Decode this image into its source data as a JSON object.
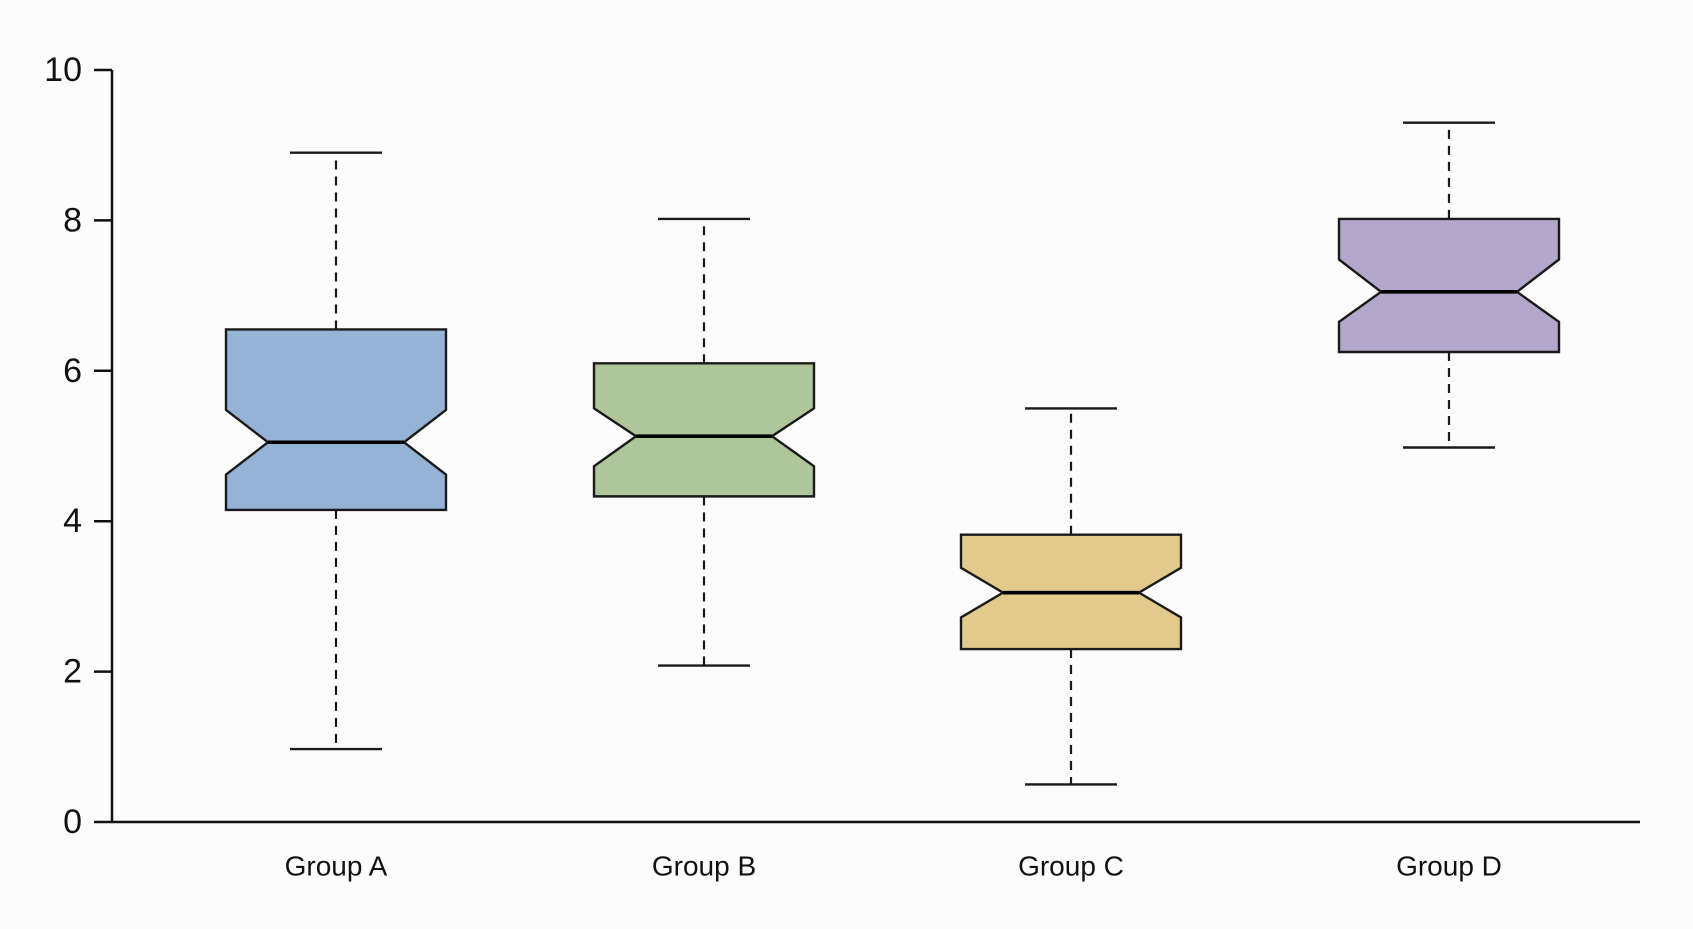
{
  "chart_data": {
    "type": "box",
    "notched": true,
    "title": "",
    "xlabel": "",
    "ylabel": "",
    "ylim": [
      0,
      10
    ],
    "yticks": [
      0,
      2,
      4,
      6,
      8,
      10
    ],
    "grid": false,
    "legend": "none",
    "categories": [
      "Group A",
      "Group B",
      "Group C",
      "Group D"
    ],
    "boxes": [
      {
        "category": "Group A",
        "whisker_low": 0.97,
        "q1": 4.15,
        "median": 5.05,
        "q3": 6.55,
        "whisker_high": 8.9,
        "notch_low": 4.62,
        "notch_high": 5.48,
        "color": "#94b3d5"
      },
      {
        "category": "Group B",
        "whisker_low": 2.08,
        "q1": 4.33,
        "median": 5.13,
        "q3": 6.1,
        "whisker_high": 8.02,
        "notch_low": 4.73,
        "notch_high": 5.5,
        "color": "#afc59a"
      },
      {
        "category": "Group C",
        "whisker_low": 0.5,
        "q1": 2.3,
        "median": 3.05,
        "q3": 3.82,
        "whisker_high": 5.5,
        "notch_low": 2.72,
        "notch_high": 3.38,
        "color": "#e2ca8c"
      },
      {
        "category": "Group D",
        "whisker_low": 4.98,
        "q1": 6.25,
        "median": 7.05,
        "q3": 8.02,
        "whisker_high": 9.3,
        "notch_low": 6.65,
        "notch_high": 7.48,
        "color": "#b3a8cb"
      }
    ],
    "axis_color": "#111111",
    "line_color": "#1a1a1a"
  }
}
